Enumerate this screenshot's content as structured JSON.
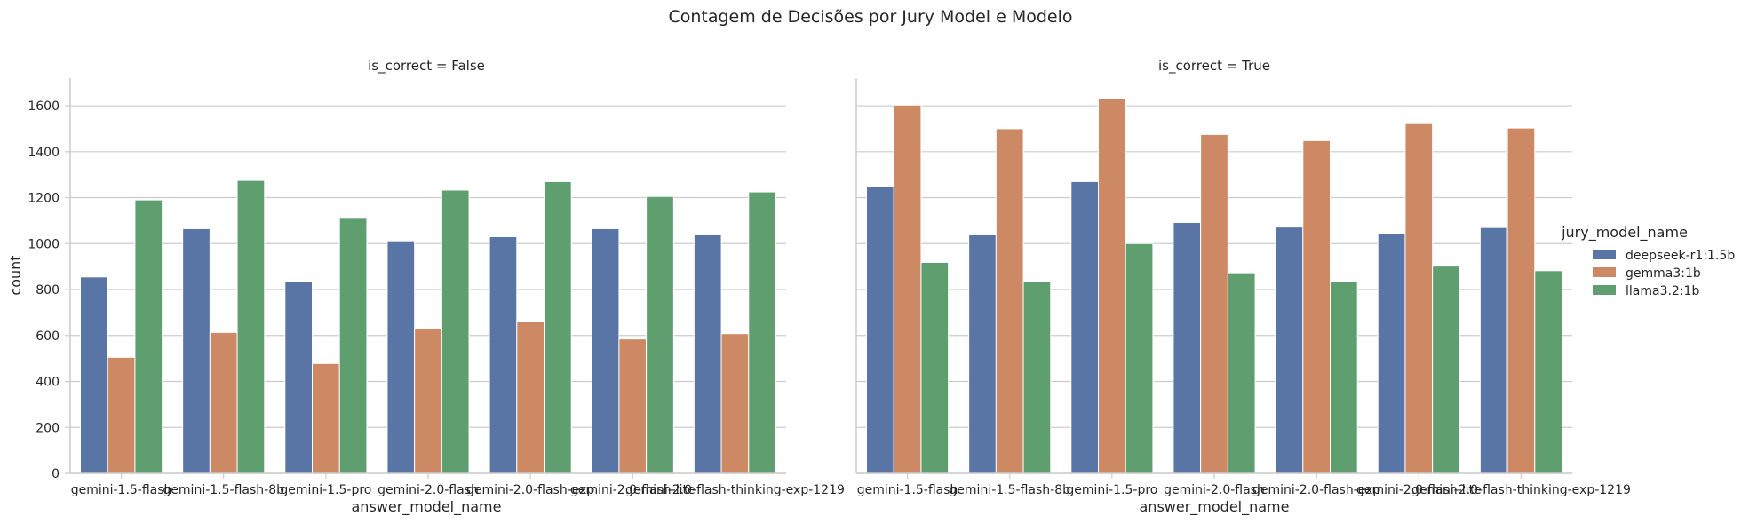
{
  "chart_data": {
    "type": "bar",
    "title": "Contagem de Decisões por Jury Model e Modelo",
    "xlabel": "answer_model_name",
    "ylabel": "count",
    "ylim": [
      0,
      1720
    ],
    "yticks": [
      0,
      200,
      400,
      600,
      800,
      1000,
      1200,
      1400,
      1600
    ],
    "grid": true,
    "legend_placement": "right",
    "legend_title": "jury_model_name",
    "categories": [
      "gemini-1.5-flash",
      "gemini-1.5-flash-8b",
      "gemini-1.5-pro",
      "gemini-2.0-flash",
      "gemini-2.0-flash-exp",
      "gemini-2.0-flash-lite",
      "gemini-2.0-flash-thinking-exp-1219"
    ],
    "colors": {
      "deepseek-r1:1.5b": "#5875a6",
      "gemma3:1b": "#cc8963",
      "llama3.2:1b": "#5f9e6e"
    },
    "panels": [
      {
        "title": "is_correct = False",
        "series": [
          {
            "name": "deepseek-r1:1.5b",
            "values": [
              855,
              1065,
              835,
              1012,
              1030,
              1065,
              1038
            ]
          },
          {
            "name": "gemma3:1b",
            "values": [
              505,
              613,
              478,
              632,
              660,
              585,
              608
            ]
          },
          {
            "name": "llama3.2:1b",
            "values": [
              1190,
              1275,
              1110,
              1233,
              1270,
              1205,
              1225
            ]
          }
        ]
      },
      {
        "title": "is_correct = True",
        "series": [
          {
            "name": "deepseek-r1:1.5b",
            "values": [
              1250,
              1038,
              1270,
              1092,
              1072,
              1043,
              1070
            ]
          },
          {
            "name": "gemma3:1b",
            "values": [
              1603,
              1500,
              1630,
              1475,
              1448,
              1522,
              1503
            ]
          },
          {
            "name": "llama3.2:1b",
            "values": [
              918,
              833,
              1000,
              873,
              837,
              902,
              882
            ]
          }
        ]
      }
    ]
  }
}
